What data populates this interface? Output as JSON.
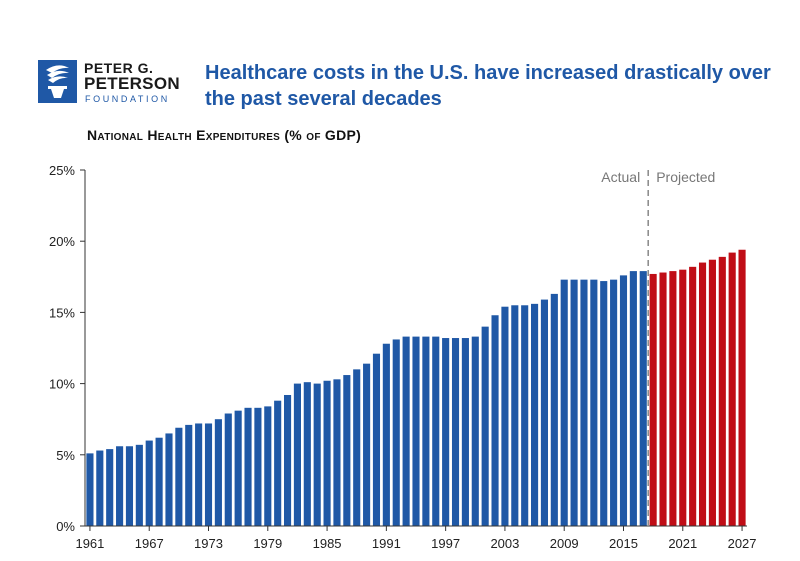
{
  "logo": {
    "line1": "PETER G.",
    "line2": "PETERSON",
    "line3": "FOUNDATION",
    "icon": "torch-icon"
  },
  "header": {
    "title": "Healthcare costs in the U.S. have increased drastically over the past several decades"
  },
  "colors": {
    "actual": "#1f58a6",
    "projected": "#c00d16",
    "brand": "#1f58a6"
  },
  "chart_data": {
    "type": "bar",
    "title": "National Health Expenditures (% of GDP)",
    "xlabel": "",
    "ylabel": "",
    "ylim": [
      0,
      25
    ],
    "grid": false,
    "y_ticks": [
      "0%",
      "5%",
      "10%",
      "15%",
      "20%",
      "25%"
    ],
    "x_ticks": [
      "1961",
      "1967",
      "1973",
      "1979",
      "1985",
      "1991",
      "1997",
      "2003",
      "2009",
      "2015",
      "2021",
      "2027"
    ],
    "annotations": {
      "actual": "Actual",
      "projected": "Projected"
    },
    "categories": [
      1961,
      1962,
      1963,
      1964,
      1965,
      1966,
      1967,
      1968,
      1969,
      1970,
      1971,
      1972,
      1973,
      1974,
      1975,
      1976,
      1977,
      1978,
      1979,
      1980,
      1981,
      1982,
      1983,
      1984,
      1985,
      1986,
      1987,
      1988,
      1989,
      1990,
      1991,
      1992,
      1993,
      1994,
      1995,
      1996,
      1997,
      1998,
      1999,
      2000,
      2001,
      2002,
      2003,
      2004,
      2005,
      2006,
      2007,
      2008,
      2009,
      2010,
      2011,
      2012,
      2013,
      2014,
      2015,
      2016,
      2017,
      2018,
      2019,
      2020,
      2021,
      2022,
      2023,
      2024,
      2025,
      2026,
      2027
    ],
    "series": [
      {
        "name": "Actual",
        "values": [
          5.1,
          5.3,
          5.4,
          5.6,
          5.6,
          5.7,
          6.0,
          6.2,
          6.5,
          6.9,
          7.1,
          7.2,
          7.2,
          7.5,
          7.9,
          8.1,
          8.3,
          8.3,
          8.4,
          8.8,
          9.2,
          10.0,
          10.1,
          10.0,
          10.2,
          10.3,
          10.6,
          11.0,
          11.4,
          12.1,
          12.8,
          13.1,
          13.3,
          13.3,
          13.3,
          13.3,
          13.2,
          13.2,
          13.2,
          13.3,
          14.0,
          14.8,
          15.4,
          15.5,
          15.5,
          15.6,
          15.9,
          16.3,
          17.3,
          17.3,
          17.3,
          17.3,
          17.2,
          17.3,
          17.6,
          17.9,
          17.9,
          null,
          null,
          null,
          null,
          null,
          null,
          null,
          null,
          null,
          null
        ]
      },
      {
        "name": "Projected",
        "values": [
          null,
          null,
          null,
          null,
          null,
          null,
          null,
          null,
          null,
          null,
          null,
          null,
          null,
          null,
          null,
          null,
          null,
          null,
          null,
          null,
          null,
          null,
          null,
          null,
          null,
          null,
          null,
          null,
          null,
          null,
          null,
          null,
          null,
          null,
          null,
          null,
          null,
          null,
          null,
          null,
          null,
          null,
          null,
          null,
          null,
          null,
          null,
          null,
          null,
          null,
          null,
          null,
          null,
          null,
          null,
          null,
          null,
          17.7,
          17.8,
          17.9,
          18.0,
          18.2,
          18.5,
          18.7,
          18.9,
          19.2,
          19.4
        ]
      }
    ]
  }
}
